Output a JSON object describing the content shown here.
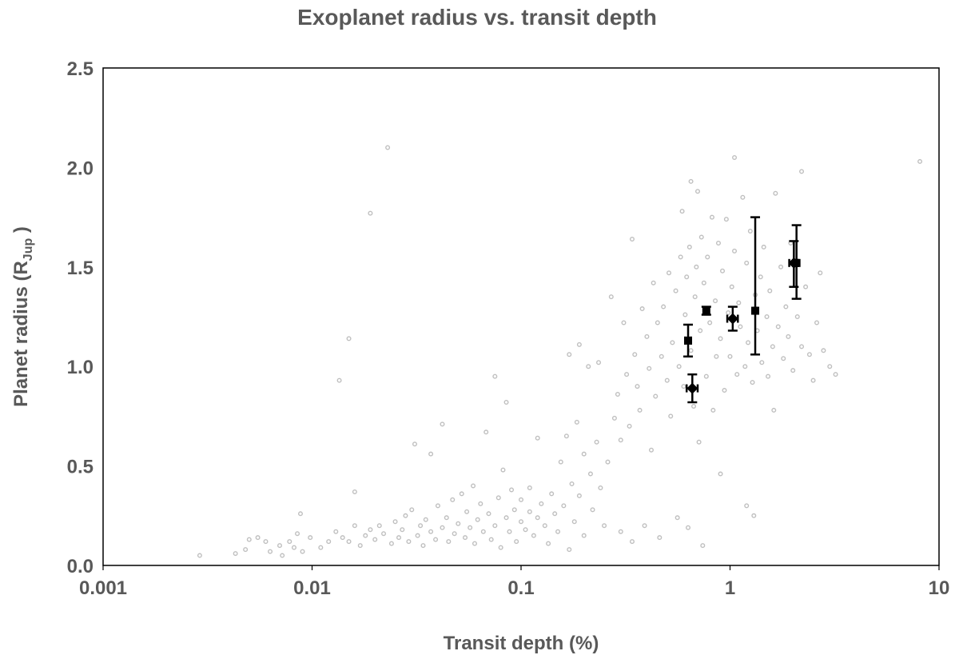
{
  "chart_data": {
    "type": "scatter",
    "title": "Exoplanet radius vs. transit depth",
    "xlabel": "Transit depth (%)",
    "ylabel": {
      "main": "Planet radius (R",
      "sub": "Jup",
      "close": " )"
    },
    "xscale": "log",
    "xlim": [
      0.001,
      10
    ],
    "ylim": [
      0,
      2.5
    ],
    "xticks": [
      "0.001",
      "0.01",
      "0.1",
      "1",
      "10"
    ],
    "yticks": [
      "0.0",
      "0.5",
      "1.0",
      "1.5",
      "2.0",
      "2.5"
    ],
    "grid": false,
    "legend": "none",
    "colors": {
      "background_points": "#bfbfbf",
      "highlight_points": "#000000",
      "text": "#595959"
    },
    "background_points": [
      [
        0.0029,
        0.05
      ],
      [
        0.0043,
        0.06
      ],
      [
        0.0048,
        0.08
      ],
      [
        0.005,
        0.13
      ],
      [
        0.0055,
        0.14
      ],
      [
        0.006,
        0.12
      ],
      [
        0.0063,
        0.07
      ],
      [
        0.007,
        0.1
      ],
      [
        0.0072,
        0.05
      ],
      [
        0.0078,
        0.12
      ],
      [
        0.0082,
        0.09
      ],
      [
        0.0085,
        0.16
      ],
      [
        0.0088,
        0.26
      ],
      [
        0.009,
        0.07
      ],
      [
        0.0098,
        0.14
      ],
      [
        0.011,
        0.09
      ],
      [
        0.012,
        0.12
      ],
      [
        0.013,
        0.17
      ],
      [
        0.0135,
        0.93
      ],
      [
        0.014,
        0.14
      ],
      [
        0.015,
        1.14
      ],
      [
        0.015,
        0.12
      ],
      [
        0.016,
        0.2
      ],
      [
        0.016,
        0.37
      ],
      [
        0.017,
        0.1
      ],
      [
        0.018,
        0.15
      ],
      [
        0.019,
        1.77
      ],
      [
        0.019,
        0.18
      ],
      [
        0.02,
        0.13
      ],
      [
        0.021,
        0.2
      ],
      [
        0.022,
        0.16
      ],
      [
        0.023,
        2.1
      ],
      [
        0.024,
        0.11
      ],
      [
        0.025,
        0.22
      ],
      [
        0.026,
        0.14
      ],
      [
        0.027,
        0.18
      ],
      [
        0.028,
        0.25
      ],
      [
        0.029,
        0.12
      ],
      [
        0.03,
        0.28
      ],
      [
        0.031,
        0.61
      ],
      [
        0.032,
        0.15
      ],
      [
        0.033,
        0.2
      ],
      [
        0.034,
        0.1
      ],
      [
        0.035,
        0.23
      ],
      [
        0.037,
        0.56
      ],
      [
        0.037,
        0.17
      ],
      [
        0.039,
        0.13
      ],
      [
        0.04,
        0.3
      ],
      [
        0.042,
        0.71
      ],
      [
        0.042,
        0.19
      ],
      [
        0.044,
        0.24
      ],
      [
        0.045,
        0.12
      ],
      [
        0.047,
        0.33
      ],
      [
        0.048,
        0.16
      ],
      [
        0.05,
        0.21
      ],
      [
        0.052,
        0.36
      ],
      [
        0.054,
        0.14
      ],
      [
        0.055,
        0.27
      ],
      [
        0.057,
        0.19
      ],
      [
        0.059,
        0.4
      ],
      [
        0.06,
        0.11
      ],
      [
        0.062,
        0.23
      ],
      [
        0.064,
        0.31
      ],
      [
        0.066,
        0.17
      ],
      [
        0.068,
        0.67
      ],
      [
        0.07,
        0.26
      ],
      [
        0.072,
        0.13
      ],
      [
        0.075,
        0.95
      ],
      [
        0.075,
        0.2
      ],
      [
        0.078,
        0.34
      ],
      [
        0.08,
        0.09
      ],
      [
        0.082,
        0.48
      ],
      [
        0.085,
        0.82
      ],
      [
        0.085,
        0.24
      ],
      [
        0.088,
        0.17
      ],
      [
        0.09,
        0.38
      ],
      [
        0.093,
        0.28
      ],
      [
        0.095,
        0.12
      ],
      [
        0.1,
        0.22
      ],
      [
        0.1,
        0.33
      ],
      [
        0.105,
        0.18
      ],
      [
        0.11,
        0.27
      ],
      [
        0.11,
        0.39
      ],
      [
        0.115,
        0.15
      ],
      [
        0.12,
        0.64
      ],
      [
        0.12,
        0.24
      ],
      [
        0.125,
        0.31
      ],
      [
        0.13,
        0.2
      ],
      [
        0.135,
        0.11
      ],
      [
        0.14,
        0.36
      ],
      [
        0.145,
        0.26
      ],
      [
        0.15,
        0.17
      ],
      [
        0.155,
        0.52
      ],
      [
        0.16,
        0.3
      ],
      [
        0.165,
        0.65
      ],
      [
        0.17,
        1.06
      ],
      [
        0.17,
        0.08
      ],
      [
        0.175,
        0.41
      ],
      [
        0.18,
        0.22
      ],
      [
        0.185,
        0.72
      ],
      [
        0.19,
        1.11
      ],
      [
        0.19,
        0.35
      ],
      [
        0.2,
        0.56
      ],
      [
        0.2,
        0.15
      ],
      [
        0.21,
        1.0
      ],
      [
        0.215,
        0.46
      ],
      [
        0.22,
        0.28
      ],
      [
        0.23,
        0.62
      ],
      [
        0.235,
        1.02
      ],
      [
        0.24,
        0.39
      ],
      [
        0.25,
        0.2
      ],
      [
        0.26,
        0.52
      ],
      [
        0.27,
        1.35
      ],
      [
        0.28,
        0.74
      ],
      [
        0.29,
        0.86
      ],
      [
        0.3,
        0.63
      ],
      [
        0.3,
        0.17
      ],
      [
        0.31,
        1.22
      ],
      [
        0.32,
        0.96
      ],
      [
        0.33,
        0.7
      ],
      [
        0.34,
        1.64
      ],
      [
        0.34,
        0.12
      ],
      [
        0.35,
        1.06
      ],
      [
        0.36,
        0.9
      ],
      [
        0.37,
        0.78
      ],
      [
        0.38,
        1.29
      ],
      [
        0.39,
        0.2
      ],
      [
        0.4,
        1.15
      ],
      [
        0.41,
        0.99
      ],
      [
        0.42,
        0.58
      ],
      [
        0.43,
        1.42
      ],
      [
        0.44,
        0.85
      ],
      [
        0.45,
        1.22
      ],
      [
        0.46,
        0.14
      ],
      [
        0.47,
        1.05
      ],
      [
        0.48,
        1.3
      ],
      [
        0.5,
        0.93
      ],
      [
        0.51,
        1.47
      ],
      [
        0.52,
        0.75
      ],
      [
        0.53,
        1.12
      ],
      [
        0.55,
        1.38
      ],
      [
        0.56,
        0.24
      ],
      [
        0.57,
        1.0
      ],
      [
        0.58,
        1.55
      ],
      [
        0.59,
        1.78
      ],
      [
        0.6,
        0.9
      ],
      [
        0.61,
        1.26
      ],
      [
        0.62,
        1.45
      ],
      [
        0.63,
        0.19
      ],
      [
        0.64,
        1.6
      ],
      [
        0.65,
        1.93
      ],
      [
        0.65,
        1.08
      ],
      [
        0.67,
        0.8
      ],
      [
        0.68,
        1.35
      ],
      [
        0.69,
        1.5
      ],
      [
        0.7,
        1.88
      ],
      [
        0.71,
        0.62
      ],
      [
        0.72,
        1.18
      ],
      [
        0.73,
        1.65
      ],
      [
        0.74,
        0.1
      ],
      [
        0.75,
        1.42
      ],
      [
        0.77,
        0.95
      ],
      [
        0.78,
        1.55
      ],
      [
        0.8,
        1.22
      ],
      [
        0.82,
        1.75
      ],
      [
        0.83,
        0.78
      ],
      [
        0.85,
        1.33
      ],
      [
        0.86,
        1.05
      ],
      [
        0.88,
        1.62
      ],
      [
        0.9,
        0.46
      ],
      [
        0.9,
        1.14
      ],
      [
        0.92,
        1.48
      ],
      [
        0.94,
        0.88
      ],
      [
        0.96,
        1.74
      ],
      [
        0.98,
        1.27
      ],
      [
        1.0,
        1.05
      ],
      [
        1.02,
        1.4
      ],
      [
        1.05,
        2.05
      ],
      [
        1.05,
        1.58
      ],
      [
        1.08,
        0.96
      ],
      [
        1.1,
        1.32
      ],
      [
        1.12,
        1.2
      ],
      [
        1.15,
        1.85
      ],
      [
        1.18,
        1.0
      ],
      [
        1.2,
        0.3
      ],
      [
        1.2,
        1.52
      ],
      [
        1.22,
        1.12
      ],
      [
        1.25,
        1.68
      ],
      [
        1.28,
        0.92
      ],
      [
        1.3,
        0.25
      ],
      [
        1.32,
        1.36
      ],
      [
        1.35,
        1.18
      ],
      [
        1.4,
        1.45
      ],
      [
        1.42,
        1.02
      ],
      [
        1.45,
        1.6
      ],
      [
        1.5,
        1.25
      ],
      [
        1.52,
        0.95
      ],
      [
        1.55,
        1.38
      ],
      [
        1.6,
        1.1
      ],
      [
        1.62,
        0.78
      ],
      [
        1.65,
        1.87
      ],
      [
        1.7,
        1.2
      ],
      [
        1.75,
        1.5
      ],
      [
        1.8,
        1.04
      ],
      [
        1.85,
        1.3
      ],
      [
        1.9,
        1.15
      ],
      [
        1.95,
        1.62
      ],
      [
        2.0,
        0.98
      ],
      [
        2.1,
        1.25
      ],
      [
        2.2,
        1.98
      ],
      [
        2.2,
        1.1
      ],
      [
        2.3,
        1.4
      ],
      [
        2.4,
        1.06
      ],
      [
        2.5,
        0.93
      ],
      [
        2.6,
        1.22
      ],
      [
        2.7,
        1.47
      ],
      [
        2.8,
        1.08
      ],
      [
        3.0,
        1.0
      ],
      [
        3.2,
        0.96
      ],
      [
        8.1,
        2.03
      ]
    ],
    "highlight_points": [
      {
        "marker": "square",
        "x": 0.63,
        "y": 1.13,
        "y_low": 1.05,
        "y_high": 1.21,
        "x_low": 0.61,
        "x_high": 0.65
      },
      {
        "marker": "square",
        "x": 0.77,
        "y": 1.28,
        "y_low": 1.26,
        "y_high": 1.3,
        "x_low": 0.75,
        "x_high": 0.79
      },
      {
        "marker": "diamond",
        "x": 0.66,
        "y": 0.89,
        "y_low": 0.82,
        "y_high": 0.96,
        "x_low": 0.62,
        "x_high": 0.7
      },
      {
        "marker": "diamond",
        "x": 1.03,
        "y": 1.24,
        "y_low": 1.18,
        "y_high": 1.3,
        "x_low": 0.97,
        "x_high": 1.09
      },
      {
        "marker": "square",
        "x": 1.32,
        "y": 1.28,
        "y_low": 1.06,
        "y_high": 1.75,
        "x_low": 1.3,
        "x_high": 1.34
      },
      {
        "marker": "square",
        "x": 2.08,
        "y": 1.52,
        "y_low": 1.34,
        "y_high": 1.71,
        "x_low": 2.05,
        "x_high": 2.11
      },
      {
        "marker": "diamond",
        "x": 2.02,
        "y": 1.52,
        "y_low": 1.4,
        "y_high": 1.63,
        "x_low": 1.92,
        "x_high": 2.12
      }
    ]
  }
}
